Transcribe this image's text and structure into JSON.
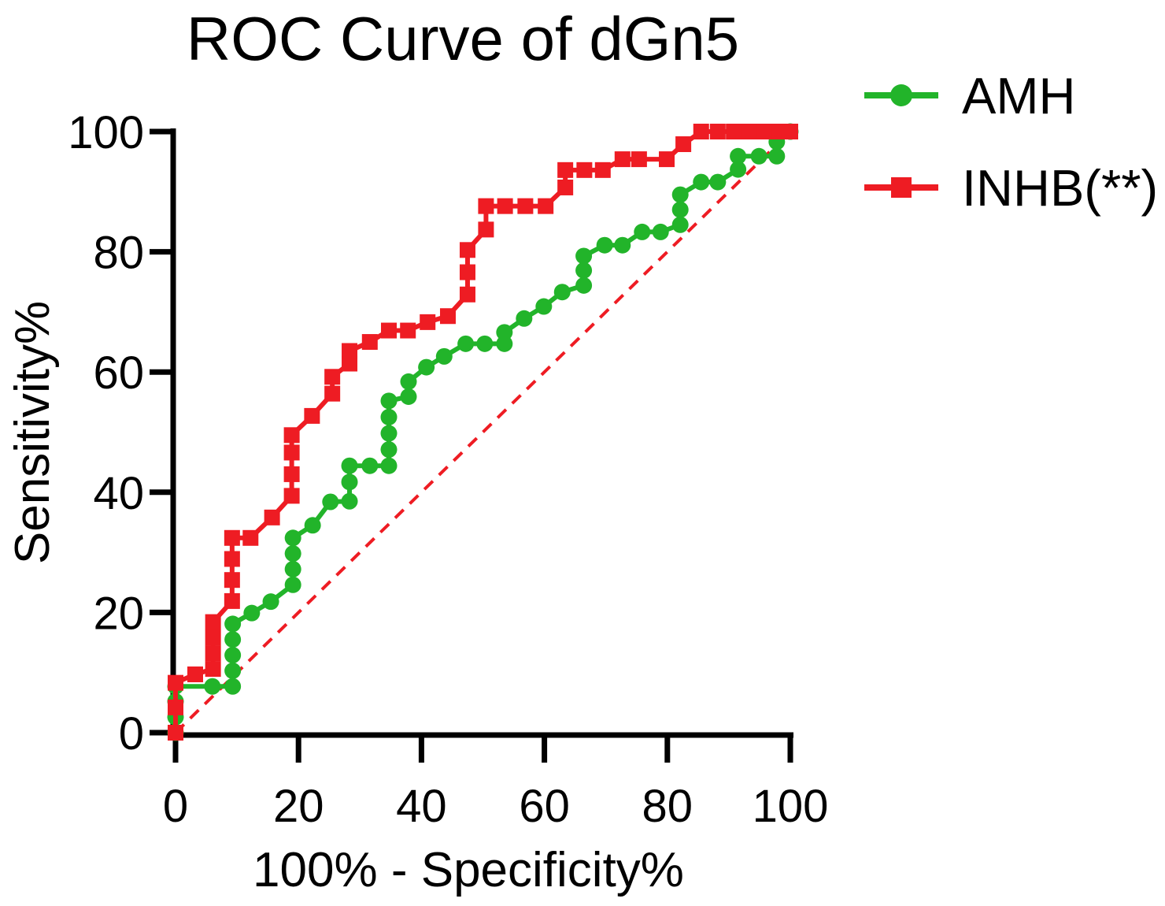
{
  "figure": {
    "background": "#FFFFFF"
  },
  "chart_data": {
    "type": "line",
    "subtype": "roc-step-curve",
    "title": "ROC Curve of dGn5",
    "xlabel": "100% - Specificity%",
    "ylabel": "Sensitivity%",
    "xlim": [
      0,
      100
    ],
    "ylim": [
      0,
      100
    ],
    "xticks": [
      0,
      20,
      40,
      60,
      80,
      100
    ],
    "yticks": [
      0,
      20,
      40,
      60,
      80,
      100
    ],
    "grid": false,
    "legend_position": "top-right-outside",
    "axis_color": "#000000",
    "reference_line": {
      "name": "chance-diagonal",
      "style": "dashed",
      "color": "#EE1C23",
      "from": [
        0,
        0
      ],
      "to": [
        100,
        100
      ]
    },
    "series": [
      {
        "id": "amh",
        "name": "AMH",
        "color": "#22B42A",
        "marker": "circle",
        "points": [
          [
            0,
            0
          ],
          [
            0,
            2.6
          ],
          [
            0,
            5.2
          ],
          [
            0,
            7.7
          ],
          [
            6,
            7.7
          ],
          [
            9.3,
            7.7
          ],
          [
            9.3,
            10.3
          ],
          [
            9.3,
            12.9
          ],
          [
            9.3,
            15.5
          ],
          [
            9.3,
            18.1
          ],
          [
            12.4,
            19.9
          ],
          [
            15.5,
            21.8
          ],
          [
            19.1,
            24.6
          ],
          [
            19.1,
            27.2
          ],
          [
            19.1,
            29.8
          ],
          [
            19.1,
            32.4
          ],
          [
            22.3,
            34.5
          ],
          [
            25.2,
            38.4
          ],
          [
            28.3,
            38.5
          ],
          [
            28.3,
            41.7
          ],
          [
            28.3,
            44.4
          ],
          [
            31.6,
            44.4
          ],
          [
            34.7,
            44.4
          ],
          [
            34.7,
            47.1
          ],
          [
            34.7,
            49.8
          ],
          [
            34.7,
            52.5
          ],
          [
            34.7,
            55.2
          ],
          [
            37.9,
            55.9
          ],
          [
            37.9,
            58.4
          ],
          [
            40.8,
            60.8
          ],
          [
            43.7,
            62.6
          ],
          [
            47.2,
            64.7
          ],
          [
            50.3,
            64.7
          ],
          [
            53.5,
            64.7
          ],
          [
            53.5,
            66.6
          ],
          [
            56.7,
            68.9
          ],
          [
            59.9,
            70.9
          ],
          [
            62.9,
            73.3
          ],
          [
            66.4,
            74.4
          ],
          [
            66.4,
            76.9
          ],
          [
            66.4,
            79.3
          ],
          [
            69.8,
            81.1
          ],
          [
            72.7,
            81.1
          ],
          [
            75.9,
            83.3
          ],
          [
            78.9,
            83.3
          ],
          [
            82.1,
            84.5
          ],
          [
            82.1,
            87
          ],
          [
            82.1,
            89.5
          ],
          [
            85.5,
            91.6
          ],
          [
            88.2,
            91.6
          ],
          [
            91.5,
            93.7
          ],
          [
            91.5,
            95.9
          ],
          [
            94.9,
            95.9
          ],
          [
            97.8,
            95.9
          ],
          [
            97.8,
            98.3
          ],
          [
            100,
            100
          ]
        ]
      },
      {
        "id": "inhb",
        "name": "INHB(**)",
        "color": "#EE1C23",
        "marker": "square",
        "points": [
          [
            0,
            0
          ],
          [
            0,
            4.2
          ],
          [
            0,
            8.3
          ],
          [
            3.2,
            9.7
          ],
          [
            6.1,
            10.6
          ],
          [
            6.1,
            13.2
          ],
          [
            6.1,
            15.8
          ],
          [
            6.1,
            18.4
          ],
          [
            9.2,
            21.9
          ],
          [
            9.2,
            25.4
          ],
          [
            9.2,
            28.9
          ],
          [
            9.2,
            32.4
          ],
          [
            12.2,
            32.4
          ],
          [
            15.7,
            35.8
          ],
          [
            18.9,
            39.4
          ],
          [
            18.9,
            43
          ],
          [
            18.9,
            46.6
          ],
          [
            18.9,
            49.5
          ],
          [
            22.2,
            52.7
          ],
          [
            25.5,
            56.4
          ],
          [
            25.5,
            59.2
          ],
          [
            28.3,
            61.4
          ],
          [
            28.3,
            63.5
          ],
          [
            31.6,
            65
          ],
          [
            34.7,
            66.9
          ],
          [
            37.8,
            66.9
          ],
          [
            41,
            68.3
          ],
          [
            44.3,
            69.3
          ],
          [
            47.5,
            72.9
          ],
          [
            47.5,
            76.6
          ],
          [
            47.5,
            80.3
          ],
          [
            50.5,
            83.7
          ],
          [
            50.5,
            87.6
          ],
          [
            53.6,
            87.6
          ],
          [
            56.9,
            87.6
          ],
          [
            60.2,
            87.6
          ],
          [
            63.4,
            90.7
          ],
          [
            63.4,
            93.6
          ],
          [
            66.5,
            93.6
          ],
          [
            69.5,
            93.6
          ],
          [
            72.7,
            95.4
          ],
          [
            75.4,
            95.4
          ],
          [
            79.9,
            95.4
          ],
          [
            82.6,
            97.9
          ],
          [
            85.5,
            100
          ],
          [
            88.2,
            100
          ],
          [
            90.8,
            100
          ],
          [
            93.3,
            100
          ],
          [
            95.8,
            100
          ],
          [
            98.3,
            100
          ],
          [
            100,
            100
          ]
        ]
      }
    ]
  }
}
